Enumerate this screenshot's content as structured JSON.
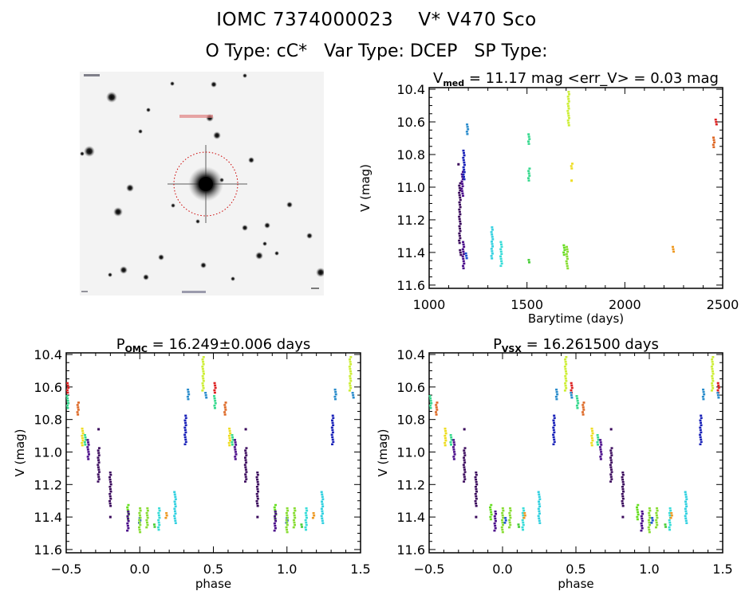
{
  "header": {
    "title_line1": "IOMC 7374000023    V* V470 Sco",
    "title_line2": "O Type: cC*   Var Type: DCEP   SP Type:"
  },
  "sky_image": {
    "description": "DSS finder image centered on target, red dotted circle",
    "circle_color": "#cc0000",
    "label_red": "",
    "corner_labels_legible": false
  },
  "chart_data": [
    {
      "id": "lightcurve",
      "type": "scatter",
      "title_main": "V",
      "title_sub": "med",
      "title_rest": " = 11.17 mag <err_V> = 0.03 mag",
      "xlabel": "Barytime (days)",
      "ylabel": "V (mag)",
      "xlim": [
        1000,
        2500
      ],
      "ylim": [
        10.4,
        11.62
      ],
      "y_inverted": true,
      "xticks": [
        1000,
        1500,
        2000,
        2500
      ],
      "xtick_labels": [
        "1000",
        "1500",
        "2000",
        "2500"
      ],
      "yticks": [
        10.4,
        10.6,
        10.8,
        11.0,
        11.2,
        11.4,
        11.6
      ],
      "ytick_labels": [
        "10.4",
        "10.6",
        "10.8",
        "11.0",
        "11.2",
        "11.4",
        "11.6"
      ],
      "groups": [
        {
          "color": "#3a0a5c",
          "x": 1157,
          "ymin": 10.97,
          "ymax": 11.34
        },
        {
          "color": "#3a0a5c",
          "x": 1150,
          "ymin": 10.86,
          "ymax": 10.86
        },
        {
          "color": "#3a0a5c",
          "x": 1160,
          "ymin": 11.38,
          "ymax": 11.42
        },
        {
          "color": "#4a0c8a",
          "x": 1170,
          "ymin": 10.9,
          "ymax": 11.05
        },
        {
          "color": "#4a0c8a",
          "x": 1175,
          "ymin": 11.33,
          "ymax": 11.5
        },
        {
          "color": "#1a22b8",
          "x": 1178,
          "ymin": 10.77,
          "ymax": 10.95
        },
        {
          "color": "#1a4fd0",
          "x": 1190,
          "ymin": 11.4,
          "ymax": 11.44
        },
        {
          "color": "#2a8ccc",
          "x": 1195,
          "ymin": 10.61,
          "ymax": 10.67
        },
        {
          "color": "#30d0e0",
          "x": 1322,
          "ymin": 11.24,
          "ymax": 11.44
        },
        {
          "color": "#38dcd8",
          "x": 1368,
          "ymin": 11.33,
          "ymax": 11.48
        },
        {
          "color": "#33d88c",
          "x": 1510,
          "ymin": 10.67,
          "ymax": 10.74
        },
        {
          "color": "#33d88c",
          "x": 1510,
          "ymin": 10.88,
          "ymax": 10.96
        },
        {
          "color": "#44cc33",
          "x": 1512,
          "ymin": 11.44,
          "ymax": 11.46
        },
        {
          "color": "#66dd22",
          "x": 1690,
          "ymin": 11.35,
          "ymax": 11.42
        },
        {
          "color": "#88dd33",
          "x": 1705,
          "ymin": 11.36,
          "ymax": 11.5
        },
        {
          "color": "#ccee33",
          "x": 1712,
          "ymin": 10.41,
          "ymax": 10.62
        },
        {
          "color": "#eedd22",
          "x": 1728,
          "ymin": 10.85,
          "ymax": 10.89
        },
        {
          "color": "#eedd22",
          "x": 1728,
          "ymin": 10.96,
          "ymax": 10.96
        },
        {
          "color": "#ee9922",
          "x": 2247,
          "ymin": 11.36,
          "ymax": 11.39
        },
        {
          "color": "#dd6622",
          "x": 2455,
          "ymin": 10.69,
          "ymax": 10.75
        },
        {
          "color": "#dd2222",
          "x": 2465,
          "ymin": 10.58,
          "ymax": 10.62
        }
      ]
    },
    {
      "id": "phase_omc",
      "type": "scatter",
      "title_main": "P",
      "title_sub": "OMC",
      "title_rest": " = 16.249±0.006 days",
      "xlabel": "phase",
      "ylabel": "V (mag)",
      "xlim": [
        -0.5,
        1.5
      ],
      "ylim": [
        10.4,
        11.62
      ],
      "y_inverted": true,
      "xticks": [
        -0.5,
        0.0,
        0.5,
        1.0,
        1.5
      ],
      "xtick_labels": [
        "−0.5",
        "0.0",
        "0.5",
        "1.0",
        "1.5"
      ],
      "yticks": [
        10.4,
        10.6,
        10.8,
        11.0,
        11.2,
        11.4,
        11.6
      ],
      "ytick_labels": [
        "10.4",
        "10.6",
        "10.8",
        "11.0",
        "11.2",
        "11.4",
        "11.6"
      ],
      "groups": [
        {
          "color": "#dd2222",
          "x": -0.49,
          "ymin": 10.57,
          "ymax": 10.63
        },
        {
          "color": "#33d88c",
          "x": -0.49,
          "ymin": 10.65,
          "ymax": 10.73
        },
        {
          "color": "#dd6622",
          "x": -0.42,
          "ymin": 10.69,
          "ymax": 10.77
        },
        {
          "color": "#eedd22",
          "x": -0.39,
          "ymin": 10.85,
          "ymax": 10.96
        },
        {
          "color": "#33d88c",
          "x": -0.37,
          "ymin": 10.89,
          "ymax": 10.95
        },
        {
          "color": "#4a0c8a",
          "x": -0.35,
          "ymin": 10.92,
          "ymax": 11.04
        },
        {
          "color": "#3a0a5c",
          "x": -0.28,
          "ymin": 10.97,
          "ymax": 11.18
        },
        {
          "color": "#3a0a5c",
          "x": -0.28,
          "ymin": 10.86,
          "ymax": 10.86
        },
        {
          "color": "#3a0a5c",
          "x": -0.2,
          "ymin": 11.12,
          "ymax": 11.33
        },
        {
          "color": "#3a0a5c",
          "x": -0.2,
          "ymin": 11.4,
          "ymax": 11.4
        },
        {
          "color": "#66dd22",
          "x": -0.08,
          "ymin": 11.32,
          "ymax": 11.42
        },
        {
          "color": "#4a0c8a",
          "x": -0.08,
          "ymin": 11.36,
          "ymax": 11.49
        },
        {
          "color": "#1a4fd0",
          "x": 0.0,
          "ymin": 11.4,
          "ymax": 11.44
        },
        {
          "color": "#88dd33",
          "x": 0.0,
          "ymin": 11.34,
          "ymax": 11.49
        },
        {
          "color": "#88dd33",
          "x": 0.05,
          "ymin": 11.34,
          "ymax": 11.46
        },
        {
          "color": "#44cc33",
          "x": 0.1,
          "ymin": 11.44,
          "ymax": 11.46
        },
        {
          "color": "#38dcd8",
          "x": 0.13,
          "ymin": 11.34,
          "ymax": 11.48
        },
        {
          "color": "#ee9922",
          "x": 0.18,
          "ymin": 11.37,
          "ymax": 11.4
        },
        {
          "color": "#30d0e0",
          "x": 0.24,
          "ymin": 11.24,
          "ymax": 11.44
        },
        {
          "color": "#1a22b8",
          "x": 0.31,
          "ymin": 10.77,
          "ymax": 10.95
        },
        {
          "color": "#2a8ccc",
          "x": 0.33,
          "ymin": 10.61,
          "ymax": 10.67
        },
        {
          "color": "#ccee33",
          "x": 0.43,
          "ymin": 10.41,
          "ymax": 10.62
        },
        {
          "color": "#2a8ccc",
          "x": 0.45,
          "ymin": 10.63,
          "ymax": 10.67
        },
        {
          "color": "#dd2222",
          "x": 0.51,
          "ymin": 10.57,
          "ymax": 10.63
        },
        {
          "color": "#33d88c",
          "x": 0.51,
          "ymin": 10.65,
          "ymax": 10.73
        },
        {
          "color": "#dd6622",
          "x": 0.58,
          "ymin": 10.69,
          "ymax": 10.77
        },
        {
          "color": "#eedd22",
          "x": 0.61,
          "ymin": 10.85,
          "ymax": 10.96
        },
        {
          "color": "#33d88c",
          "x": 0.63,
          "ymin": 10.89,
          "ymax": 10.95
        },
        {
          "color": "#4a0c8a",
          "x": 0.65,
          "ymin": 10.92,
          "ymax": 11.04
        },
        {
          "color": "#3a0a5c",
          "x": 0.72,
          "ymin": 10.97,
          "ymax": 11.18
        },
        {
          "color": "#3a0a5c",
          "x": 0.72,
          "ymin": 10.86,
          "ymax": 10.86
        },
        {
          "color": "#3a0a5c",
          "x": 0.8,
          "ymin": 11.12,
          "ymax": 11.33
        },
        {
          "color": "#3a0a5c",
          "x": 0.8,
          "ymin": 11.4,
          "ymax": 11.4
        },
        {
          "color": "#66dd22",
          "x": 0.92,
          "ymin": 11.32,
          "ymax": 11.42
        },
        {
          "color": "#4a0c8a",
          "x": 0.92,
          "ymin": 11.36,
          "ymax": 11.49
        },
        {
          "color": "#1a4fd0",
          "x": 1.0,
          "ymin": 11.4,
          "ymax": 11.44
        },
        {
          "color": "#88dd33",
          "x": 1.0,
          "ymin": 11.34,
          "ymax": 11.49
        },
        {
          "color": "#88dd33",
          "x": 1.05,
          "ymin": 11.34,
          "ymax": 11.46
        },
        {
          "color": "#44cc33",
          "x": 1.1,
          "ymin": 11.44,
          "ymax": 11.46
        },
        {
          "color": "#38dcd8",
          "x": 1.13,
          "ymin": 11.34,
          "ymax": 11.48
        },
        {
          "color": "#ee9922",
          "x": 1.18,
          "ymin": 11.37,
          "ymax": 11.4
        },
        {
          "color": "#30d0e0",
          "x": 1.24,
          "ymin": 11.24,
          "ymax": 11.44
        },
        {
          "color": "#1a22b8",
          "x": 1.31,
          "ymin": 10.77,
          "ymax": 10.95
        },
        {
          "color": "#2a8ccc",
          "x": 1.33,
          "ymin": 10.61,
          "ymax": 10.67
        },
        {
          "color": "#ccee33",
          "x": 1.43,
          "ymin": 10.41,
          "ymax": 10.62
        },
        {
          "color": "#2a8ccc",
          "x": 1.45,
          "ymin": 10.63,
          "ymax": 10.67
        }
      ]
    },
    {
      "id": "phase_vsx",
      "type": "scatter",
      "title_main": "P",
      "title_sub": "VSX",
      "title_rest": " = 16.261500 days",
      "xlabel": "phase",
      "ylabel": "V (mag)",
      "xlim": [
        -0.5,
        1.5
      ],
      "ylim": [
        10.4,
        11.62
      ],
      "y_inverted": true,
      "xticks": [
        -0.5,
        0.0,
        0.5,
        1.0,
        1.5
      ],
      "xtick_labels": [
        "−0.5",
        "0.0",
        "0.5",
        "1.0",
        "1.5"
      ],
      "yticks": [
        10.4,
        10.6,
        10.8,
        11.0,
        11.2,
        11.4,
        11.6
      ],
      "ytick_labels": [
        "10.4",
        "10.6",
        "10.8",
        "11.0",
        "11.2",
        "11.4",
        "11.6"
      ],
      "groups": [
        {
          "color": "#33d88c",
          "x": -0.49,
          "ymin": 10.65,
          "ymax": 10.73
        },
        {
          "color": "#dd6622",
          "x": -0.45,
          "ymin": 10.69,
          "ymax": 10.77
        },
        {
          "color": "#eedd22",
          "x": -0.39,
          "ymin": 10.85,
          "ymax": 10.96
        },
        {
          "color": "#33d88c",
          "x": -0.35,
          "ymin": 10.89,
          "ymax": 10.95
        },
        {
          "color": "#4a0c8a",
          "x": -0.33,
          "ymin": 10.92,
          "ymax": 11.04
        },
        {
          "color": "#3a0a5c",
          "x": -0.26,
          "ymin": 10.97,
          "ymax": 11.18
        },
        {
          "color": "#3a0a5c",
          "x": -0.26,
          "ymin": 10.86,
          "ymax": 10.86
        },
        {
          "color": "#3a0a5c",
          "x": -0.18,
          "ymin": 11.12,
          "ymax": 11.33
        },
        {
          "color": "#3a0a5c",
          "x": -0.18,
          "ymin": 11.4,
          "ymax": 11.4
        },
        {
          "color": "#66dd22",
          "x": -0.08,
          "ymin": 11.32,
          "ymax": 11.42
        },
        {
          "color": "#4a0c8a",
          "x": -0.05,
          "ymin": 11.36,
          "ymax": 11.49
        },
        {
          "color": "#88dd33",
          "x": 0.0,
          "ymin": 11.34,
          "ymax": 11.49
        },
        {
          "color": "#1a4fd0",
          "x": 0.02,
          "ymin": 11.4,
          "ymax": 11.44
        },
        {
          "color": "#88dd33",
          "x": 0.05,
          "ymin": 11.34,
          "ymax": 11.46
        },
        {
          "color": "#44cc33",
          "x": 0.11,
          "ymin": 11.44,
          "ymax": 11.46
        },
        {
          "color": "#38dcd8",
          "x": 0.14,
          "ymin": 11.34,
          "ymax": 11.48
        },
        {
          "color": "#ee9922",
          "x": 0.15,
          "ymin": 11.37,
          "ymax": 11.4
        },
        {
          "color": "#30d0e0",
          "x": 0.25,
          "ymin": 11.24,
          "ymax": 11.44
        },
        {
          "color": "#1a22b8",
          "x": 0.35,
          "ymin": 10.77,
          "ymax": 10.95
        },
        {
          "color": "#2a8ccc",
          "x": 0.37,
          "ymin": 10.61,
          "ymax": 10.67
        },
        {
          "color": "#ccee33",
          "x": 0.43,
          "ymin": 10.41,
          "ymax": 10.62
        },
        {
          "color": "#dd2222",
          "x": 0.47,
          "ymin": 10.57,
          "ymax": 10.63
        },
        {
          "color": "#2a8ccc",
          "x": 0.47,
          "ymin": 10.63,
          "ymax": 10.67
        },
        {
          "color": "#33d88c",
          "x": 0.51,
          "ymin": 10.65,
          "ymax": 10.73
        },
        {
          "color": "#dd6622",
          "x": 0.55,
          "ymin": 10.69,
          "ymax": 10.77
        },
        {
          "color": "#eedd22",
          "x": 0.61,
          "ymin": 10.85,
          "ymax": 10.96
        },
        {
          "color": "#33d88c",
          "x": 0.65,
          "ymin": 10.89,
          "ymax": 10.95
        },
        {
          "color": "#4a0c8a",
          "x": 0.67,
          "ymin": 10.92,
          "ymax": 11.04
        },
        {
          "color": "#3a0a5c",
          "x": 0.74,
          "ymin": 10.97,
          "ymax": 11.18
        },
        {
          "color": "#3a0a5c",
          "x": 0.74,
          "ymin": 10.86,
          "ymax": 10.86
        },
        {
          "color": "#3a0a5c",
          "x": 0.82,
          "ymin": 11.12,
          "ymax": 11.33
        },
        {
          "color": "#3a0a5c",
          "x": 0.82,
          "ymin": 11.4,
          "ymax": 11.4
        },
        {
          "color": "#66dd22",
          "x": 0.92,
          "ymin": 11.32,
          "ymax": 11.42
        },
        {
          "color": "#4a0c8a",
          "x": 0.95,
          "ymin": 11.36,
          "ymax": 11.49
        },
        {
          "color": "#88dd33",
          "x": 1.0,
          "ymin": 11.34,
          "ymax": 11.49
        },
        {
          "color": "#1a4fd0",
          "x": 1.02,
          "ymin": 11.4,
          "ymax": 11.44
        },
        {
          "color": "#88dd33",
          "x": 1.05,
          "ymin": 11.34,
          "ymax": 11.46
        },
        {
          "color": "#44cc33",
          "x": 1.11,
          "ymin": 11.44,
          "ymax": 11.46
        },
        {
          "color": "#38dcd8",
          "x": 1.14,
          "ymin": 11.34,
          "ymax": 11.48
        },
        {
          "color": "#ee9922",
          "x": 1.15,
          "ymin": 11.37,
          "ymax": 11.4
        },
        {
          "color": "#30d0e0",
          "x": 1.25,
          "ymin": 11.24,
          "ymax": 11.44
        },
        {
          "color": "#1a22b8",
          "x": 1.35,
          "ymin": 10.77,
          "ymax": 10.95
        },
        {
          "color": "#2a8ccc",
          "x": 1.37,
          "ymin": 10.61,
          "ymax": 10.67
        },
        {
          "color": "#ccee33",
          "x": 1.43,
          "ymin": 10.41,
          "ymax": 10.62
        },
        {
          "color": "#dd2222",
          "x": 1.47,
          "ymin": 10.57,
          "ymax": 10.63
        },
        {
          "color": "#2a8ccc",
          "x": 1.47,
          "ymin": 10.63,
          "ymax": 10.67
        }
      ]
    }
  ]
}
